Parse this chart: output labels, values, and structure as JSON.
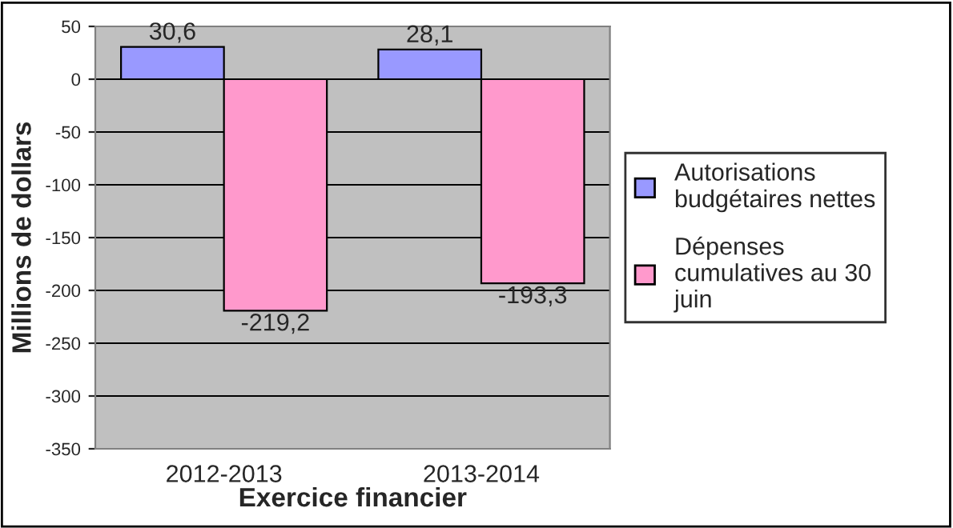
{
  "chart_data": {
    "type": "bar",
    "xlabel": "Exercice financier",
    "ylabel": "Millions de dollars",
    "categories": [
      "2012-2013",
      "2013-2014"
    ],
    "series": [
      {
        "name": "Autorisations budgétaires nettes",
        "color": "#9999ff",
        "values": [
          30.6,
          28.1
        ],
        "value_labels": [
          "30,6",
          "28,1"
        ]
      },
      {
        "name": "Dépenses cumulatives au 30 juin",
        "color": "#ff99cc",
        "values": [
          -219.2,
          -193.3
        ],
        "value_labels": [
          "-219,2",
          "-193,3"
        ]
      }
    ],
    "ylim": [
      -350,
      50
    ],
    "yticks": [
      -350,
      -300,
      -250,
      -200,
      -150,
      -100,
      -50,
      0,
      50
    ],
    "grid": "y",
    "legend": "right"
  }
}
